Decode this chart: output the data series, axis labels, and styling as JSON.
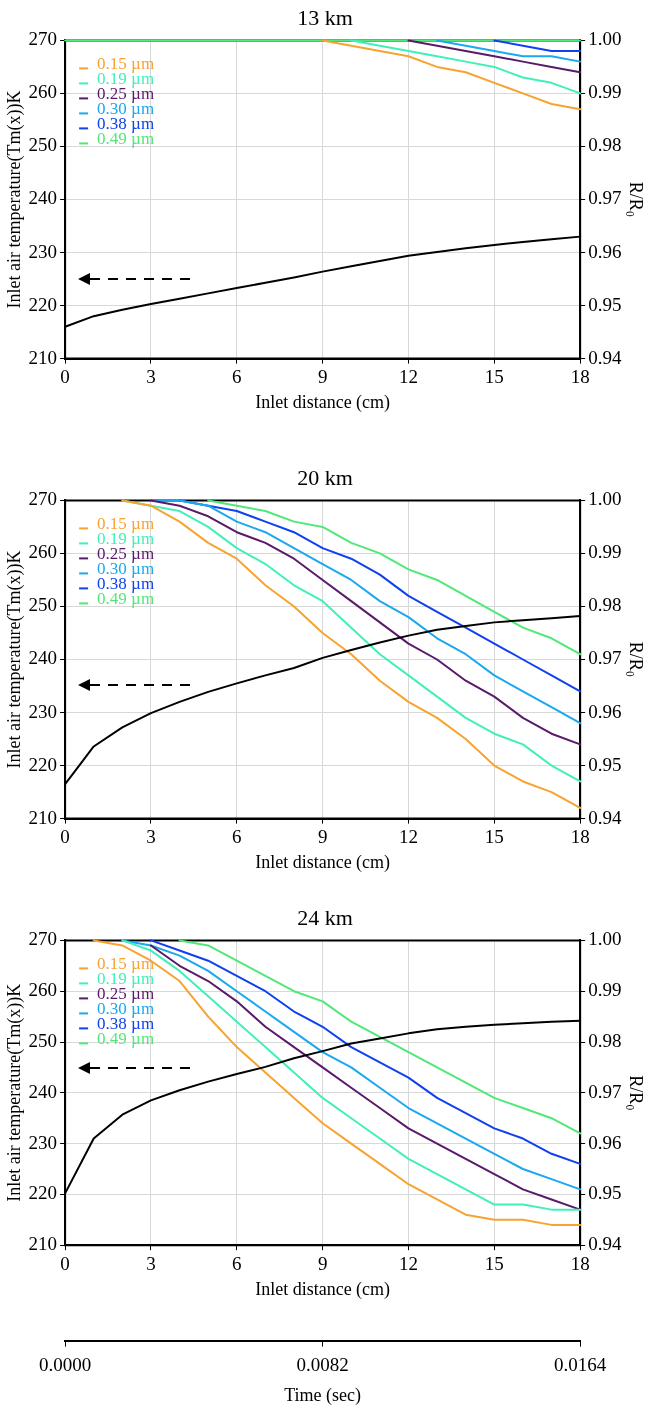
{
  "chart_data": [
    {
      "type": "line",
      "title": "13 km",
      "xlabel": "Inlet distance (cm)",
      "ylabel": "Inlet air temperature(Tm(x))K",
      "y2label": "R/R₀",
      "x": [
        0,
        1,
        2,
        3,
        4,
        5,
        6,
        7,
        8,
        9,
        10,
        11,
        12,
        13,
        14,
        15,
        16,
        17,
        18
      ],
      "xlim": [
        0,
        18
      ],
      "xticks": [
        0,
        3,
        6,
        9,
        12,
        15,
        18
      ],
      "ylim": [
        210,
        270
      ],
      "yticks": [
        210,
        220,
        230,
        240,
        250,
        260,
        270
      ],
      "y2lim": [
        0.94,
        1.0
      ],
      "y2ticks": [
        {
          "value": 0.94,
          "label": "0.94"
        },
        {
          "value": 0.95,
          "label": "0.95"
        },
        {
          "value": 0.96,
          "label": "0.96"
        },
        {
          "value": 0.97,
          "label": "0.97"
        },
        {
          "value": 0.98,
          "label": "0.98"
        },
        {
          "value": 0.99,
          "label": "0.99"
        },
        {
          "value": 1.0,
          "label": "1.00"
        }
      ],
      "grid": true,
      "legend": "top left",
      "series": [
        {
          "color": "#000000",
          "axis": "y",
          "values": [
            216,
            218,
            219.2,
            220.3,
            221.3,
            222.3,
            223.3,
            224.3,
            225.3,
            226.4,
            227.4,
            228.4,
            229.4,
            230.1,
            230.8,
            231.4,
            232,
            232.5,
            233
          ]
        },
        {
          "name": "0.15 µm",
          "color": "#f7a330",
          "axis": "y2",
          "values": [
            null,
            null,
            null,
            null,
            null,
            null,
            null,
            null,
            null,
            1,
            0.999,
            0.998,
            0.997,
            0.995,
            0.994,
            0.992,
            0.99,
            0.988,
            0.987
          ]
        },
        {
          "name": "0.19 µm",
          "color": "#40f0b8",
          "axis": "y2",
          "values": [
            null,
            null,
            null,
            null,
            null,
            null,
            null,
            null,
            null,
            null,
            1,
            0.999,
            0.998,
            0.997,
            0.996,
            0.995,
            0.993,
            0.992,
            0.99
          ]
        },
        {
          "name": "0.25 µm",
          "color": "#5a1a6a",
          "axis": "y2",
          "values": [
            null,
            null,
            null,
            null,
            null,
            null,
            null,
            null,
            null,
            null,
            null,
            null,
            1,
            0.999,
            0.998,
            0.997,
            0.996,
            0.995,
            0.994
          ]
        },
        {
          "name": "0.30 µm",
          "color": "#1aa8f0",
          "axis": "y2",
          "values": [
            null,
            null,
            null,
            null,
            null,
            null,
            null,
            null,
            null,
            null,
            null,
            null,
            null,
            1,
            0.999,
            0.998,
            0.997,
            0.997,
            0.996
          ]
        },
        {
          "name": "0.38 µm",
          "color": "#1040f0",
          "axis": "y2",
          "values": [
            null,
            null,
            null,
            null,
            null,
            null,
            null,
            null,
            null,
            null,
            null,
            null,
            null,
            null,
            null,
            1,
            0.999,
            0.998,
            0.998
          ]
        },
        {
          "name": "0.49 µm",
          "color": "#50e878",
          "axis": "y2",
          "values": [
            1,
            1,
            1,
            1,
            1,
            1,
            1,
            1,
            1,
            1,
            1,
            1,
            1,
            1,
            1,
            1,
            1,
            1,
            1
          ]
        }
      ]
    },
    {
      "type": "line",
      "title": "20 km",
      "xlabel": "Inlet distance (cm)",
      "ylabel": "Inlet air temperature(Tm(x))K",
      "y2label": "R/R₀",
      "x": [
        0,
        1,
        2,
        3,
        4,
        5,
        6,
        7,
        8,
        9,
        10,
        11,
        12,
        13,
        14,
        15,
        16,
        17,
        18
      ],
      "xlim": [
        0,
        18
      ],
      "xticks": [
        0,
        3,
        6,
        9,
        12,
        15,
        18
      ],
      "ylim": [
        210,
        270
      ],
      "yticks": [
        210,
        220,
        230,
        240,
        250,
        260,
        270
      ],
      "y2lim": [
        0.94,
        1.0
      ],
      "y2ticks": [
        {
          "value": 0.94,
          "label": "0.94"
        },
        {
          "value": 0.95,
          "label": "0.95"
        },
        {
          "value": 0.96,
          "label": "0.96"
        },
        {
          "value": 0.97,
          "label": "0.97"
        },
        {
          "value": 0.98,
          "label": "0.98"
        },
        {
          "value": 0.99,
          "label": "0.99"
        },
        {
          "value": 1.0,
          "label": "1.00"
        }
      ],
      "grid": true,
      "legend": "top left",
      "series": [
        {
          "color": "#000000",
          "axis": "y",
          "values": [
            216.5,
            223.6,
            227.2,
            229.9,
            232,
            233.9,
            235.5,
            237,
            238.4,
            240.3,
            241.8,
            243.2,
            244.5,
            245.6,
            246.3,
            247,
            247.4,
            247.8,
            248.2
          ]
        },
        {
          "name": "0.15 µm",
          "color": "#f7a330",
          "axis": "y2",
          "values": [
            null,
            null,
            1,
            0.999,
            0.996,
            0.992,
            0.989,
            0.984,
            0.98,
            0.975,
            0.971,
            0.966,
            0.962,
            0.959,
            0.955,
            0.95,
            0.947,
            0.945,
            0.942
          ]
        },
        {
          "name": "0.19 µm",
          "color": "#40f0b8",
          "axis": "y2",
          "values": [
            null,
            null,
            1,
            0.999,
            0.998,
            0.995,
            0.991,
            0.988,
            0.984,
            0.981,
            0.976,
            0.971,
            0.967,
            0.963,
            0.959,
            0.956,
            0.954,
            0.95,
            0.947
          ]
        },
        {
          "name": "0.25 µm",
          "color": "#5a1a6a",
          "axis": "y2",
          "values": [
            null,
            null,
            null,
            1,
            0.999,
            0.997,
            0.994,
            0.992,
            0.989,
            0.985,
            0.981,
            0.977,
            0.973,
            0.97,
            0.966,
            0.963,
            0.959,
            0.956,
            0.954
          ]
        },
        {
          "name": "0.30 µm",
          "color": "#1aa8f0",
          "axis": "y2",
          "values": [
            null,
            null,
            null,
            1,
            1,
            0.999,
            0.996,
            0.994,
            0.991,
            0.988,
            0.985,
            0.981,
            0.978,
            0.974,
            0.971,
            0.967,
            0.964,
            0.961,
            0.958
          ]
        },
        {
          "name": "0.38 µm",
          "color": "#1040f0",
          "axis": "y2",
          "values": [
            null,
            null,
            null,
            null,
            1,
            0.999,
            0.998,
            0.996,
            0.994,
            0.991,
            0.989,
            0.986,
            0.982,
            0.979,
            0.976,
            0.973,
            0.97,
            0.967,
            0.964
          ]
        },
        {
          "name": "0.49 µm",
          "color": "#50e878",
          "axis": "y2",
          "values": [
            null,
            null,
            null,
            null,
            null,
            1,
            0.999,
            0.998,
            0.996,
            0.995,
            0.992,
            0.99,
            0.987,
            0.985,
            0.982,
            0.979,
            0.976,
            0.974,
            0.971
          ]
        }
      ]
    },
    {
      "type": "line",
      "title": "24 km",
      "xlabel": "Inlet distance (cm)",
      "ylabel": "Inlet air temperature(Tm(x))K",
      "y2label": "R/R₀",
      "x": [
        0,
        1,
        2,
        3,
        4,
        5,
        6,
        7,
        8,
        9,
        10,
        11,
        12,
        13,
        14,
        15,
        16,
        17,
        18
      ],
      "xlim": [
        0,
        18
      ],
      "xticks": [
        0,
        3,
        6,
        9,
        12,
        15,
        18
      ],
      "ylim": [
        210,
        270
      ],
      "yticks": [
        210,
        220,
        230,
        240,
        250,
        260,
        270
      ],
      "y2lim": [
        0.94,
        1.0
      ],
      "y2ticks": [
        {
          "value": 0.94,
          "label": "0.94"
        },
        {
          "value": 0.95,
          "label": "0.95"
        },
        {
          "value": 0.96,
          "label": "0.96"
        },
        {
          "value": 0.97,
          "label": "0.97"
        },
        {
          "value": 0.98,
          "label": "0.98"
        },
        {
          "value": 0.99,
          "label": "0.99"
        },
        {
          "value": 1.0,
          "label": "1.00"
        }
      ],
      "x2lim": [
        0,
        0.0164
      ],
      "x2ticks": [
        {
          "value": 0,
          "label": "0.0000"
        },
        {
          "value": 0.0082,
          "label": "0.0082"
        },
        {
          "value": 0.0164,
          "label": "0.0164"
        }
      ],
      "x2label": "Time (sec)",
      "grid": true,
      "legend": "top left",
      "series": [
        {
          "color": "#000000",
          "axis": "y",
          "values": [
            220.2,
            231,
            235.7,
            238.5,
            240.5,
            242.2,
            243.7,
            245.1,
            246.8,
            248.2,
            249.7,
            250.7,
            251.7,
            252.5,
            253,
            253.4,
            253.7,
            254,
            254.2
          ]
        },
        {
          "name": "0.15 µm",
          "color": "#f7a330",
          "axis": "y2",
          "values": [
            null,
            1,
            0.999,
            0.996,
            0.992,
            0.985,
            0.979,
            0.974,
            0.969,
            0.964,
            0.96,
            0.956,
            0.952,
            0.949,
            0.946,
            0.945,
            0.945,
            0.944,
            0.944
          ]
        },
        {
          "name": "0.19 µm",
          "color": "#40f0b8",
          "axis": "y2",
          "values": [
            null,
            null,
            1,
            0.998,
            0.994,
            0.989,
            0.984,
            0.979,
            0.974,
            0.969,
            0.965,
            0.961,
            0.957,
            0.954,
            0.951,
            0.948,
            0.948,
            0.947,
            0.947
          ]
        },
        {
          "name": "0.25 µm",
          "color": "#5a1a6a",
          "axis": "y2",
          "values": [
            null,
            null,
            null,
            0.999,
            0.995,
            0.992,
            0.988,
            0.983,
            0.979,
            0.975,
            0.971,
            0.967,
            0.963,
            0.96,
            0.957,
            0.954,
            0.951,
            0.949,
            0.947
          ]
        },
        {
          "name": "0.30 µm",
          "color": "#1aa8f0",
          "axis": "y2",
          "values": [
            null,
            null,
            1,
            0.999,
            0.997,
            0.994,
            0.99,
            0.986,
            0.982,
            0.978,
            0.975,
            0.971,
            0.967,
            0.964,
            0.961,
            0.958,
            0.955,
            0.953,
            0.951
          ]
        },
        {
          "name": "0.38 µm",
          "color": "#1040f0",
          "axis": "y2",
          "values": [
            null,
            null,
            null,
            1,
            0.998,
            0.996,
            0.993,
            0.99,
            0.986,
            0.983,
            0.979,
            0.976,
            0.973,
            0.969,
            0.966,
            0.963,
            0.961,
            0.958,
            0.956
          ]
        },
        {
          "name": "0.49 µm",
          "color": "#50e878",
          "axis": "y2",
          "values": [
            null,
            null,
            null,
            null,
            1,
            0.999,
            0.996,
            0.993,
            0.99,
            0.988,
            0.984,
            0.981,
            0.978,
            0.975,
            0.972,
            0.969,
            0.967,
            0.965,
            0.962
          ]
        }
      ]
    }
  ]
}
